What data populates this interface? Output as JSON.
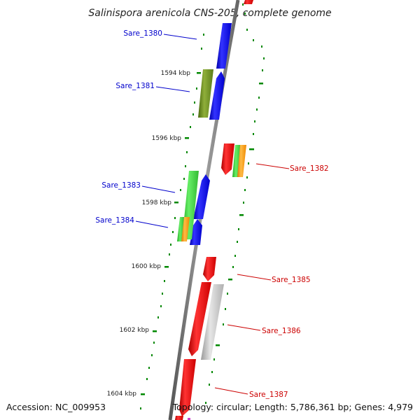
{
  "title": "Salinispora arenicola CNS-205, complete genome",
  "footer": {
    "accession": "Accession: NC_009953",
    "summary": "Topology: circular; Length: 5,786,361 bp; Genes: 4,979"
  },
  "scale_labels": [
    "1594 kbp",
    "1596 kbp",
    "1598 kbp",
    "1600 kbp",
    "1602 kbp",
    "1604 kbp"
  ],
  "gene_labels": {
    "left": [
      "Sare_1380",
      "Sare_1381",
      "Sare_1383",
      "Sare_1384"
    ],
    "right": [
      "Sare_1382",
      "Sare_1385",
      "Sare_1386",
      "Sare_1387"
    ]
  },
  "colors": {
    "forward_strand": "#0000ee",
    "reverse_strand": "#ee0000",
    "label_left": "#0000cc",
    "label_right": "#cc0000",
    "cog_green": "#33cc33",
    "cog_olive": "#6b8e23",
    "cog_orange": "#ff9900",
    "cog_gray": "#c0c0c0",
    "backbone": "#808080",
    "tick": "#008800"
  }
}
